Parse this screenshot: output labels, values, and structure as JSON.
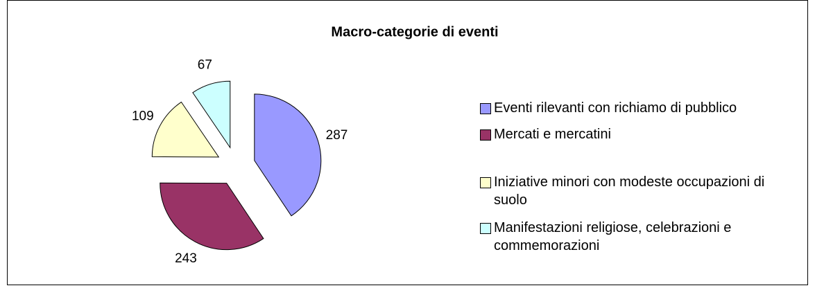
{
  "chart_data": {
    "type": "pie",
    "title": "Macro-categorie di eventi",
    "categories": [
      "Eventi rilevanti con richiamo di pubblico",
      "Mercati e mercatini",
      "Iniziative minori con modeste occupazioni di suolo",
      "Manifestazioni religiose, celebrazioni e commemorazioni"
    ],
    "values": [
      287,
      243,
      109,
      67
    ],
    "colors": [
      "#9999ff",
      "#993366",
      "#ffffcc",
      "#ccffff"
    ],
    "legend": "right"
  }
}
